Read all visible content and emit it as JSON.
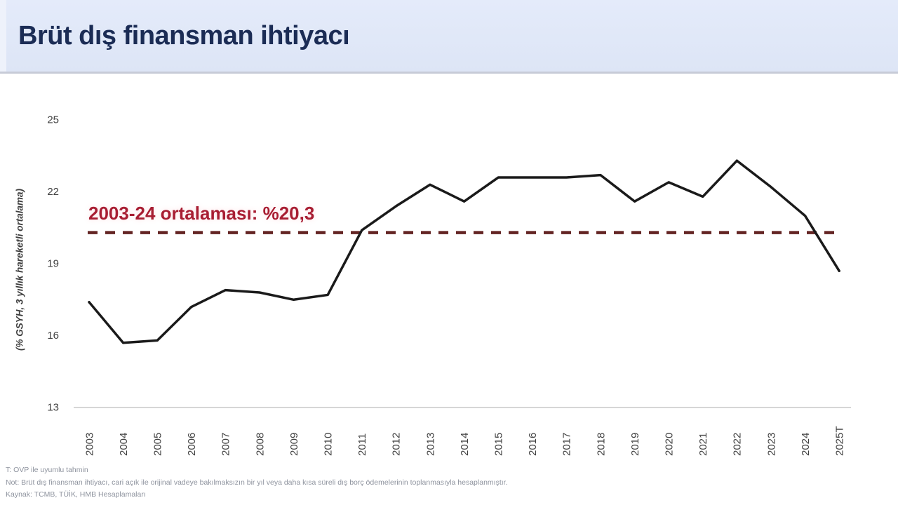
{
  "header": {
    "title": "Brüt dış finansman ihtiyacı"
  },
  "chart_data": {
    "type": "line",
    "title": "Brüt dış finansman ihtiyacı",
    "ylabel": "(% GSYH, 3 yıllık hareketli ortalama)",
    "xlabel": "",
    "categories": [
      "2003",
      "2004",
      "2005",
      "2006",
      "2007",
      "2008",
      "2009",
      "2010",
      "2011",
      "2012",
      "2013",
      "2014",
      "2015",
      "2016",
      "2017",
      "2018",
      "2019",
      "2020",
      "2021",
      "2022",
      "2023",
      "2024",
      "2025T"
    ],
    "series": [
      {
        "name": "Brüt dış finansman ihtiyacı (% GSYH, 3 yıllık hareketli ortalama)",
        "values": [
          17.4,
          15.7,
          15.8,
          17.2,
          17.9,
          17.8,
          17.5,
          17.7,
          20.4,
          21.4,
          22.3,
          21.6,
          22.6,
          22.6,
          22.6,
          22.7,
          21.6,
          22.4,
          21.8,
          23.3,
          22.2,
          21.0,
          18.7
        ]
      }
    ],
    "ylim": [
      13,
      25
    ],
    "yticks": [
      13,
      16,
      19,
      22,
      25
    ],
    "grid": false,
    "legend": "none",
    "line_color": "#1a1a1a",
    "reference_line": {
      "value": 20.3,
      "label": "2003-24 ortalaması: %20,3",
      "style": "dashed",
      "color": "#632423"
    }
  },
  "colors": {
    "header_background": "#dde5f6",
    "title_text": "#1b2c55",
    "annotation_text": "#a81e33",
    "series_line": "#1a1a1a",
    "dashed_line": "#632423",
    "axis_text": "#404040",
    "footnote_text": "#8e939e"
  },
  "footnotes": [
    "T: OVP ile uyumlu tahmin",
    "Not: Brüt dış finansman ihtiyacı, cari açık ile orijinal vadeye bakılmaksızın bir yıl veya daha kısa süreli dış borç ödemelerinin toplanmasıyla hesaplanmıştır.",
    "Kaynak: TCMB, TÜİK, HMB Hesaplamaları"
  ]
}
